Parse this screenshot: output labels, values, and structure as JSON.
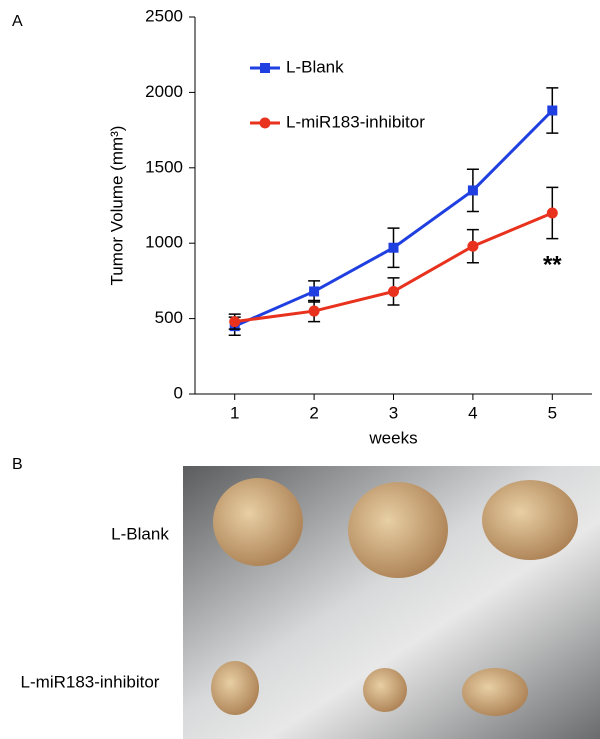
{
  "chart_data": {
    "type": "line",
    "panel_label": "A",
    "x_label": "weeks",
    "y_label": "Tumor Volume (mm³)",
    "x": [
      1,
      2,
      3,
      4,
      5
    ],
    "xlim": [
      0.5,
      5.5
    ],
    "xticks": [
      1,
      2,
      3,
      4,
      5
    ],
    "ylim": [
      0,
      2500
    ],
    "yticks": [
      0,
      500,
      1000,
      1500,
      2000,
      2500
    ],
    "legend": "upper left",
    "annotation": "**",
    "series": [
      {
        "name": "L-Blank",
        "color": "#1f3fe0",
        "marker": "square",
        "values": [
          450,
          680,
          970,
          1350,
          1880
        ],
        "errors": [
          60,
          70,
          130,
          140,
          150
        ]
      },
      {
        "name": "L-miR183-inhibitor",
        "color": "#e8321e",
        "marker": "circle",
        "values": [
          480,
          550,
          680,
          980,
          1200
        ],
        "errors": [
          50,
          70,
          90,
          110,
          170
        ]
      }
    ]
  },
  "panel_b": {
    "label": "B",
    "rows": [
      "L-Blank",
      "L-miR183-inhibitor"
    ]
  }
}
